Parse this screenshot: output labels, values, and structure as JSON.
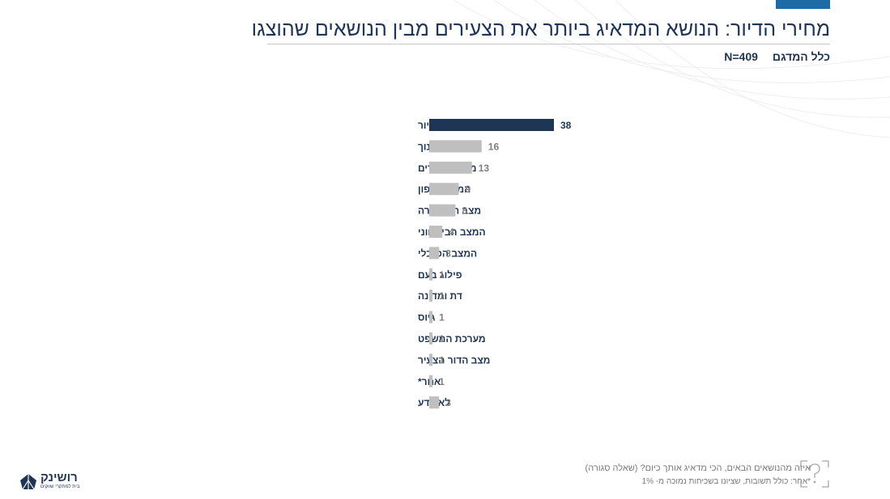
{
  "header": {
    "title": "מחירי הדיור: הנושא המדאיג ביותר את הצעירים מבין הנושאים שהוצגו",
    "sample_label": "כלל המדגם",
    "sample_size": "N=409"
  },
  "colors": {
    "highlight_bar": "#1f3556",
    "other_bars": "#bfbfbf",
    "accent": "#1d6aa5"
  },
  "chart_data": {
    "type": "bar",
    "orientation": "horizontal",
    "categories": [
      "מחירי הדיור",
      "מערכת החינוך",
      "מצב הצעירים",
      "המצב בצפון",
      "מצב התחבורה",
      "המצב הביטחוני",
      "המצב הכלכלי",
      "פילוג בעם",
      "דת ומדינה",
      "גיוס",
      "מערכת המשפט",
      "מצב הדור הצעיר",
      "אחר*",
      "לא יודע"
    ],
    "values": [
      38,
      16,
      13,
      9,
      8,
      4,
      3,
      1,
      1,
      1,
      1,
      1,
      1,
      3
    ],
    "highlight_index": 0,
    "data_labels": true,
    "grid": false
  },
  "footer": {
    "question": "איזה מהנושאים הבאים, הכי מדאיג אותך כיום? (שאלה סגורה)",
    "note": "*אחר: כולל תשובות, שציונו בשכיחות נמוכה מ- 1%",
    "question_icon": "question-mark-icon"
  },
  "logo": {
    "name": "רושינק",
    "tagline": "בית למחקרי שווקים",
    "icon": "house-logo-icon"
  }
}
